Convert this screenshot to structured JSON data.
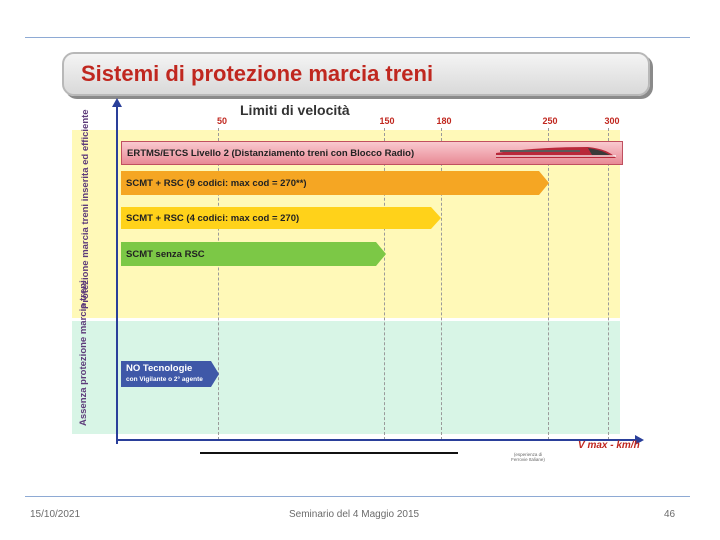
{
  "slide": {
    "title": "Sistemi di protezione marcia treni"
  },
  "diagram": {
    "heading": "Limiti di velocità",
    "speed_ticks": [
      "50",
      "150",
      "180",
      "250",
      "300"
    ],
    "y_labels": {
      "inserita": "Protezione marcia treni inserita ed efficiente",
      "assenza": "Assenza protezione marcia treni"
    },
    "bars": {
      "ertms": "ERTMS/ETCS Livello 2 (Distanziamento treni con Blocco Radio)",
      "scmt9": "SCMT + RSC (9 codici: max cod = 270**)",
      "scmt4": "SCMT + RSC (4 codici: max cod = 270)",
      "scmt": "SCMT senza RSC",
      "notec_title": "NO Tecnologie",
      "notec_sub": "con Vigilante o 2° agente"
    },
    "x_axis_label": "V max  -  km/h",
    "source_note": "(esperienza di Ferrovie Italiane)",
    "colors": {
      "title": "#c0271f",
      "ertms": "#e88a95",
      "scmt9": "#f5a623",
      "scmt4": "#ffd21a",
      "scmt": "#7cc846",
      "notec": "#3f58a8",
      "band_protected": "#fff9b8",
      "band_unprotected": "#d8f5e6"
    }
  },
  "footer": {
    "date": "15/10/2021",
    "center": "Seminario del 4 Maggio 2015",
    "page": "46"
  }
}
